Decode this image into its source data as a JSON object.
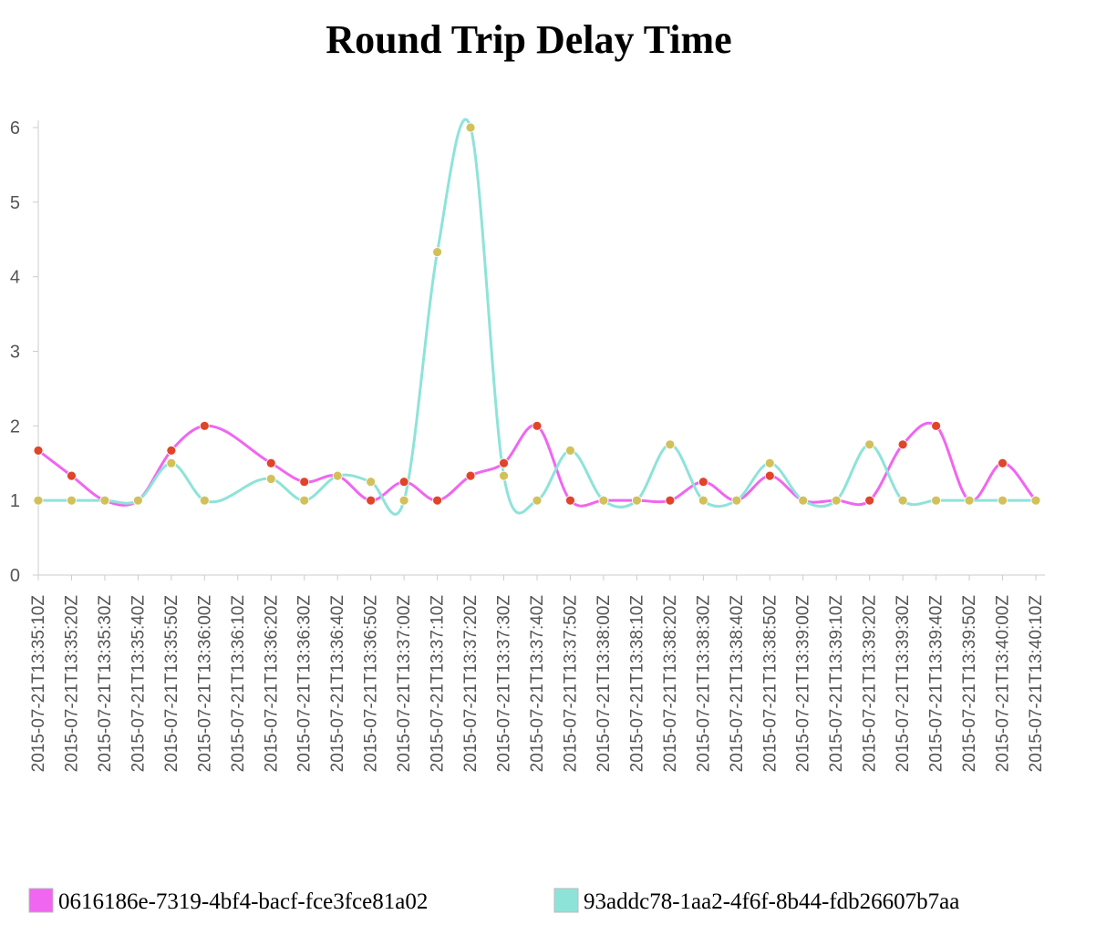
{
  "chart_data": {
    "type": "line",
    "title": "Round Trip Delay Time",
    "xlabel": "",
    "ylabel": "",
    "ylim": [
      0,
      6
    ],
    "yticks": [
      "0",
      "1",
      "2",
      "3",
      "4",
      "5",
      "6"
    ],
    "grid": false,
    "legend_position": "bottom",
    "x": [
      "2015-07-21T13:35:10Z",
      "2015-07-21T13:35:20Z",
      "2015-07-21T13:35:30Z",
      "2015-07-21T13:35:40Z",
      "2015-07-21T13:35:50Z",
      "2015-07-21T13:36:00Z",
      "2015-07-21T13:36:10Z",
      "2015-07-21T13:36:20Z",
      "2015-07-21T13:36:30Z",
      "2015-07-21T13:36:40Z",
      "2015-07-21T13:36:50Z",
      "2015-07-21T13:37:00Z",
      "2015-07-21T13:37:10Z",
      "2015-07-21T13:37:20Z",
      "2015-07-21T13:37:30Z",
      "2015-07-21T13:37:40Z",
      "2015-07-21T13:37:50Z",
      "2015-07-21T13:38:00Z",
      "2015-07-21T13:38:10Z",
      "2015-07-21T13:38:20Z",
      "2015-07-21T13:38:30Z",
      "2015-07-21T13:38:40Z",
      "2015-07-21T13:38:50Z",
      "2015-07-21T13:39:00Z",
      "2015-07-21T13:39:10Z",
      "2015-07-21T13:39:20Z",
      "2015-07-21T13:39:30Z",
      "2015-07-21T13:39:40Z",
      "2015-07-21T13:39:50Z",
      "2015-07-21T13:40:00Z",
      "2015-07-21T13:40:10Z"
    ],
    "series": [
      {
        "name": "0616186e-7319-4bf4-bacf-fce3fce81a02",
        "color": "#f066f0",
        "marker_color": "#e0452a",
        "points": [
          {
            "x": "2015-07-21T13:35:10Z",
            "y": 1.67
          },
          {
            "x": "2015-07-21T13:35:20Z",
            "y": 1.33
          },
          {
            "x": "2015-07-21T13:35:30Z",
            "y": 1.0
          },
          {
            "x": "2015-07-21T13:35:40Z",
            "y": 1.0
          },
          {
            "x": "2015-07-21T13:35:50Z",
            "y": 1.67
          },
          {
            "x": "2015-07-21T13:36:00Z",
            "y": 2.0
          },
          {
            "x": "2015-07-21T13:36:20Z",
            "y": 1.5
          },
          {
            "x": "2015-07-21T13:36:30Z",
            "y": 1.25
          },
          {
            "x": "2015-07-21T13:36:40Z",
            "y": 1.33
          },
          {
            "x": "2015-07-21T13:36:50Z",
            "y": 1.0
          },
          {
            "x": "2015-07-21T13:37:00Z",
            "y": 1.25
          },
          {
            "x": "2015-07-21T13:37:10Z",
            "y": 1.0
          },
          {
            "x": "2015-07-21T13:37:20Z",
            "y": 1.33
          },
          {
            "x": "2015-07-21T13:37:30Z",
            "y": 1.5
          },
          {
            "x": "2015-07-21T13:37:40Z",
            "y": 2.0
          },
          {
            "x": "2015-07-21T13:37:50Z",
            "y": 1.0
          },
          {
            "x": "2015-07-21T13:38:00Z",
            "y": 1.0
          },
          {
            "x": "2015-07-21T13:38:10Z",
            "y": 1.0
          },
          {
            "x": "2015-07-21T13:38:20Z",
            "y": 1.0
          },
          {
            "x": "2015-07-21T13:38:30Z",
            "y": 1.25
          },
          {
            "x": "2015-07-21T13:38:40Z",
            "y": 1.0
          },
          {
            "x": "2015-07-21T13:38:50Z",
            "y": 1.33
          },
          {
            "x": "2015-07-21T13:39:00Z",
            "y": 1.0
          },
          {
            "x": "2015-07-21T13:39:10Z",
            "y": 1.0
          },
          {
            "x": "2015-07-21T13:39:20Z",
            "y": 1.0
          },
          {
            "x": "2015-07-21T13:39:30Z",
            "y": 1.75
          },
          {
            "x": "2015-07-21T13:39:40Z",
            "y": 2.0
          },
          {
            "x": "2015-07-21T13:39:50Z",
            "y": 1.0
          },
          {
            "x": "2015-07-21T13:40:00Z",
            "y": 1.5
          },
          {
            "x": "2015-07-21T13:40:10Z",
            "y": 1.0
          }
        ]
      },
      {
        "name": "93addc78-1aa2-4f6f-8b44-fdb26607b7aa",
        "color": "#8ee3d9",
        "marker_color": "#d2c15a",
        "points": [
          {
            "x": "2015-07-21T13:35:10Z",
            "y": 1.0
          },
          {
            "x": "2015-07-21T13:35:20Z",
            "y": 1.0
          },
          {
            "x": "2015-07-21T13:35:30Z",
            "y": 1.0
          },
          {
            "x": "2015-07-21T13:35:40Z",
            "y": 1.0
          },
          {
            "x": "2015-07-21T13:35:50Z",
            "y": 1.5
          },
          {
            "x": "2015-07-21T13:36:00Z",
            "y": 1.0
          },
          {
            "x": "2015-07-21T13:36:20Z",
            "y": 1.29
          },
          {
            "x": "2015-07-21T13:36:30Z",
            "y": 1.0
          },
          {
            "x": "2015-07-21T13:36:40Z",
            "y": 1.33
          },
          {
            "x": "2015-07-21T13:36:50Z",
            "y": 1.25
          },
          {
            "x": "2015-07-21T13:37:00Z",
            "y": 1.0
          },
          {
            "x": "2015-07-21T13:37:10Z",
            "y": 4.33
          },
          {
            "x": "2015-07-21T13:37:20Z",
            "y": 6.0
          },
          {
            "x": "2015-07-21T13:37:30Z",
            "y": 1.33
          },
          {
            "x": "2015-07-21T13:37:40Z",
            "y": 1.0
          },
          {
            "x": "2015-07-21T13:37:50Z",
            "y": 1.67
          },
          {
            "x": "2015-07-21T13:38:00Z",
            "y": 1.0
          },
          {
            "x": "2015-07-21T13:38:10Z",
            "y": 1.0
          },
          {
            "x": "2015-07-21T13:38:20Z",
            "y": 1.75
          },
          {
            "x": "2015-07-21T13:38:30Z",
            "y": 1.0
          },
          {
            "x": "2015-07-21T13:38:40Z",
            "y": 1.0
          },
          {
            "x": "2015-07-21T13:38:50Z",
            "y": 1.5
          },
          {
            "x": "2015-07-21T13:39:00Z",
            "y": 1.0
          },
          {
            "x": "2015-07-21T13:39:10Z",
            "y": 1.0
          },
          {
            "x": "2015-07-21T13:39:20Z",
            "y": 1.75
          },
          {
            "x": "2015-07-21T13:39:30Z",
            "y": 1.0
          },
          {
            "x": "2015-07-21T13:39:40Z",
            "y": 1.0
          },
          {
            "x": "2015-07-21T13:39:50Z",
            "y": 1.0
          },
          {
            "x": "2015-07-21T13:40:00Z",
            "y": 1.0
          },
          {
            "x": "2015-07-21T13:40:10Z",
            "y": 1.0
          }
        ]
      }
    ]
  }
}
